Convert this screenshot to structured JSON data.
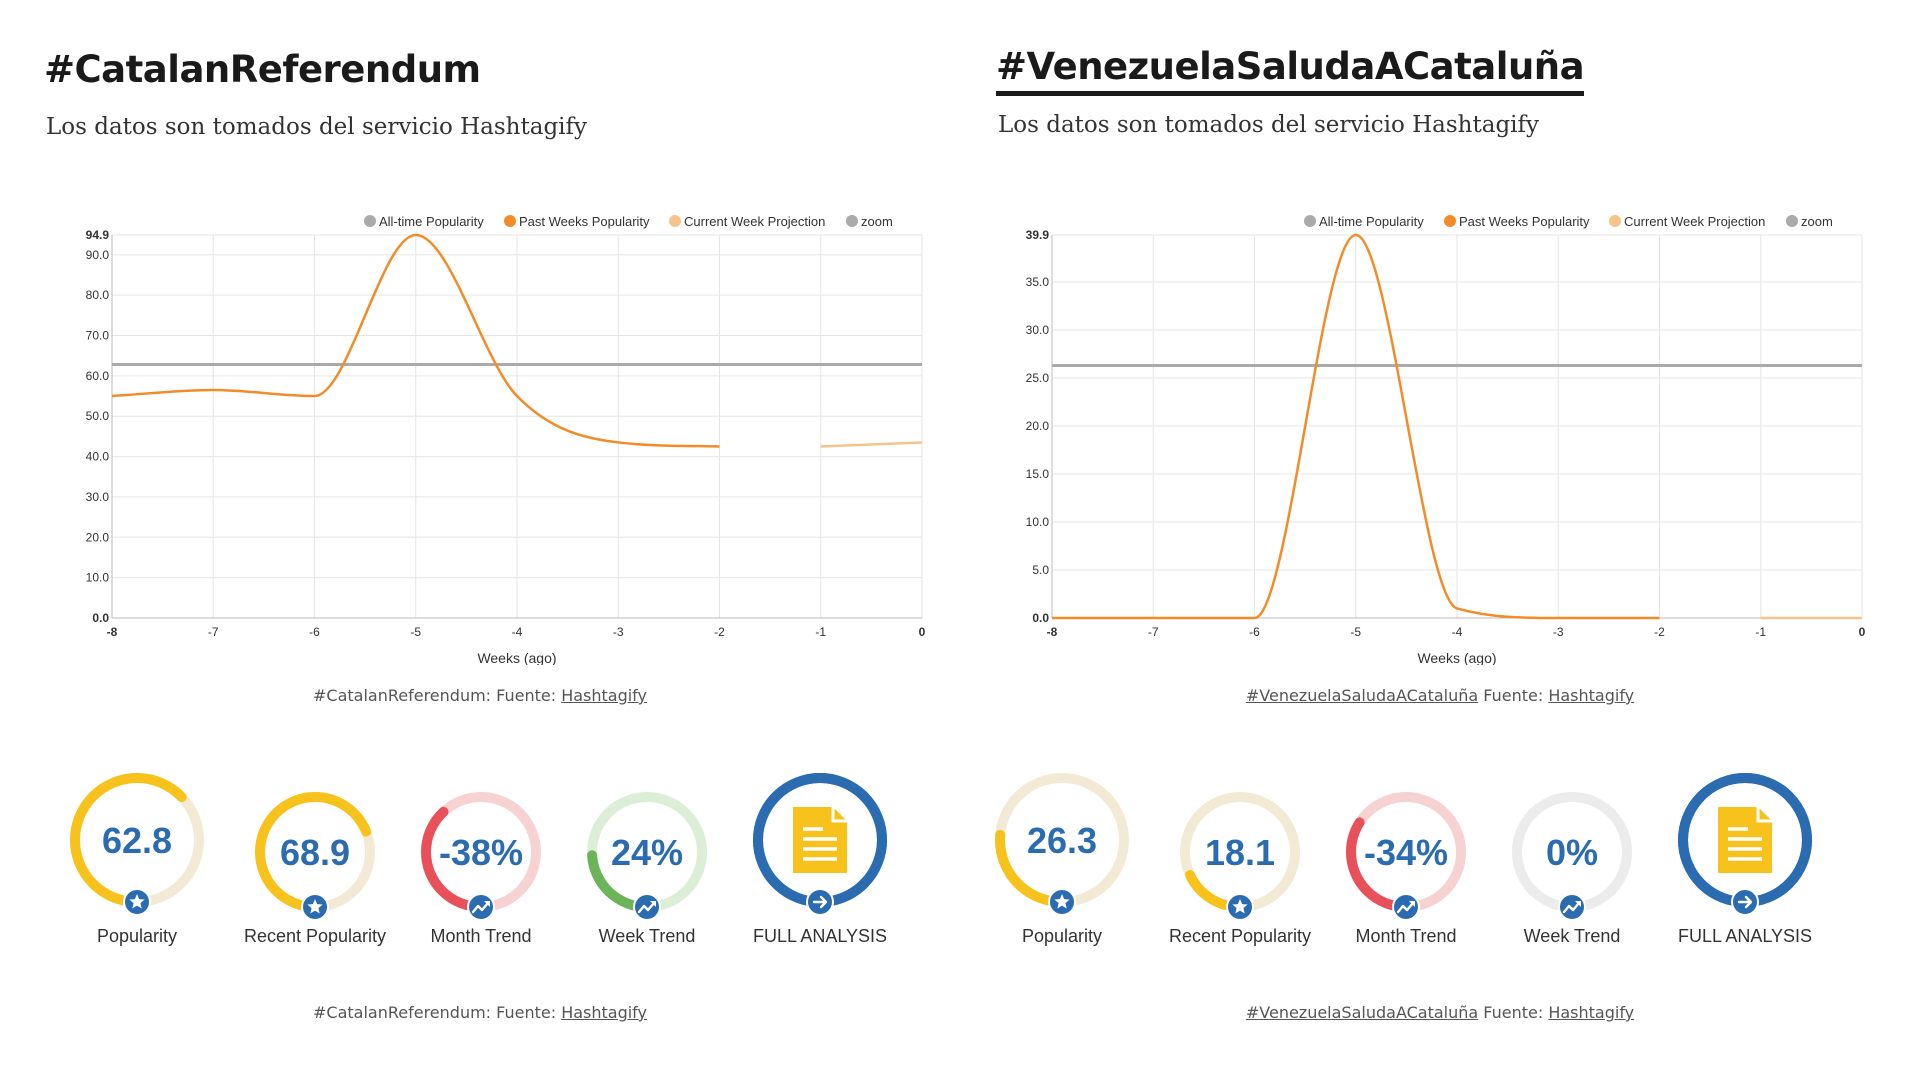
{
  "colors": {
    "orange": "#f28c28",
    "light_orange": "#f5c48a",
    "gray": "#aaaaaa",
    "grid": "#e6e6e6",
    "blue": "#2b6cb0",
    "yellow": "#f7c21b",
    "pale_yellow": "#f3ead6",
    "red": "#e8515a",
    "pale_red": "#f6d2d2",
    "green": "#6cb45a",
    "pale_green": "#dcefd6",
    "pale_gray": "#ececec"
  },
  "panels": [
    {
      "title": "#CatalanReferendum",
      "subtitle": "Los datos son tomados del servicio Hashtagify",
      "caption_prefix": "#CatalanReferendum: Fuente: ",
      "caption_link": "Hashtagify",
      "gauges": [
        {
          "value": "62.8",
          "label": "Popularity",
          "fraction": 0.628,
          "badge": "star-icon",
          "color": "yellow",
          "track": "pale_yellow",
          "text_color": "blue"
        },
        {
          "value": "68.9",
          "label": "Recent Popularity",
          "fraction": 0.689,
          "badge": "star-icon",
          "color": "yellow",
          "track": "pale_yellow",
          "text_color": "blue"
        },
        {
          "value": "-38%",
          "label": "Month Trend",
          "fraction": 0.38,
          "badge": "trend-icon",
          "color": "red",
          "track": "pale_red",
          "text_color": "blue"
        },
        {
          "value": "24%",
          "label": "Week Trend",
          "fraction": 0.24,
          "badge": "trend-icon",
          "color": "green",
          "track": "pale_green",
          "text_color": "blue"
        },
        {
          "value": "",
          "label": "FULL ANALYSIS",
          "fraction": 1,
          "badge": "arrow-right-icon",
          "color": "blue",
          "track": "blue",
          "text_color": "blue",
          "doc": true
        }
      ]
    },
    {
      "title": "#VenezuelaSaludaACataluña",
      "subtitle": "Los datos son tomados del servicio Hashtagify",
      "caption_prefix": "Fuente: ",
      "caption_tag": "#VenezuelaSaludaACataluña",
      "caption_link": "Hashtagify",
      "gauges": [
        {
          "value": "26.3",
          "label": "Popularity",
          "fraction": 0.263,
          "badge": "star-icon",
          "color": "yellow",
          "track": "pale_yellow",
          "text_color": "blue"
        },
        {
          "value": "18.1",
          "label": "Recent Popularity",
          "fraction": 0.181,
          "badge": "star-icon",
          "color": "yellow",
          "track": "pale_yellow",
          "text_color": "blue"
        },
        {
          "value": "-34%",
          "label": "Month Trend",
          "fraction": 0.34,
          "badge": "trend-icon",
          "color": "red",
          "track": "pale_red",
          "text_color": "blue"
        },
        {
          "value": "0%",
          "label": "Week Trend",
          "fraction": 0,
          "badge": "trend-icon",
          "color": "pale_gray",
          "track": "pale_gray",
          "text_color": "blue"
        },
        {
          "value": "",
          "label": "FULL ANALYSIS",
          "fraction": 1,
          "badge": "arrow-right-icon",
          "color": "blue",
          "track": "blue",
          "text_color": "blue",
          "doc": true
        }
      ]
    }
  ],
  "chart_data": [
    {
      "type": "line",
      "legend": [
        "All-time Popularity",
        "Past Weeks Popularity",
        "Current Week Projection",
        "zoom"
      ],
      "xlabel": "Weeks (ago)",
      "x_ticks": [
        "-8",
        "-7",
        "-6",
        "-5",
        "-4",
        "-3",
        "-2",
        "-1",
        "0"
      ],
      "y_ticks": [
        "0.0",
        "10.0",
        "20.0",
        "30.0",
        "40.0",
        "50.0",
        "60.0",
        "70.0",
        "80.0",
        "90.0",
        "94.9"
      ],
      "ylim": [
        0,
        94.9
      ],
      "xlim": [
        -8,
        0
      ],
      "alltime": 62.8,
      "series": [
        {
          "name": "Past Weeks Popularity",
          "x": [
            -8,
            -7,
            -6,
            -5,
            -4,
            -3,
            -2
          ],
          "values": [
            55,
            56.5,
            55,
            94.9,
            55,
            43.5,
            42.5
          ]
        },
        {
          "name": "Current Week Projection",
          "x": [
            -1,
            0
          ],
          "values": [
            42.5,
            43.5
          ]
        }
      ]
    },
    {
      "type": "line",
      "legend": [
        "All-time Popularity",
        "Past Weeks Popularity",
        "Current Week Projection",
        "zoom"
      ],
      "xlabel": "Weeks (ago)",
      "x_ticks": [
        "-8",
        "-7",
        "-6",
        "-5",
        "-4",
        "-3",
        "-2",
        "-1",
        "0"
      ],
      "y_ticks": [
        "0.0",
        "5.0",
        "10.0",
        "15.0",
        "20.0",
        "25.0",
        "30.0",
        "35.0",
        "39.9"
      ],
      "ylim": [
        0,
        39.9
      ],
      "xlim": [
        -8,
        0
      ],
      "alltime": 26.3,
      "series": [
        {
          "name": "Past Weeks Popularity",
          "x": [
            -8,
            -7,
            -6,
            -5,
            -4,
            -3,
            -2
          ],
          "values": [
            0,
            0,
            0,
            39.9,
            1,
            0,
            0
          ]
        },
        {
          "name": "Current Week Projection",
          "x": [
            -1,
            0
          ],
          "values": [
            0,
            0
          ]
        }
      ]
    }
  ]
}
